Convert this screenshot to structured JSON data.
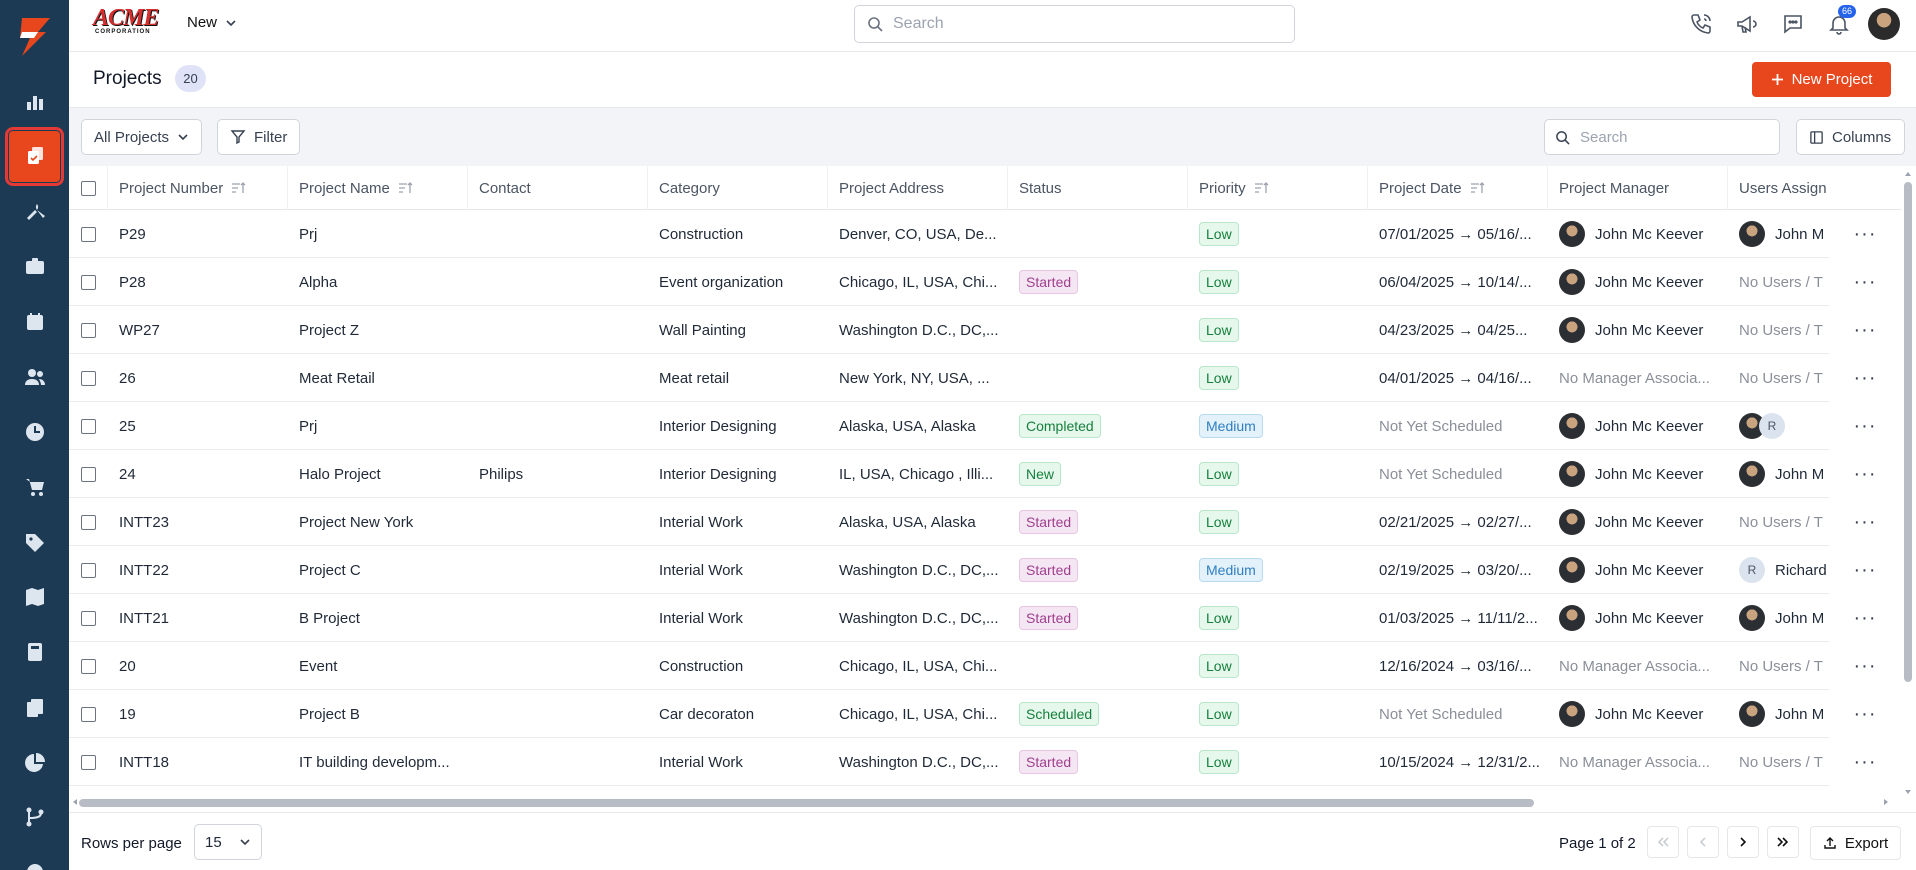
{
  "topbar": {
    "brand_main": "ACME",
    "brand_sub": "CORPORATION",
    "new_label": "New",
    "search_placeholder": "Search",
    "notification_count": "66"
  },
  "header": {
    "title": "Projects",
    "count": "20",
    "new_project_label": "New Project"
  },
  "toolbar": {
    "all_projects_label": "All Projects",
    "filter_label": "Filter",
    "search_placeholder": "Search",
    "columns_label": "Columns"
  },
  "table": {
    "columns": [
      "Project Number",
      "Project Name",
      "Contact",
      "Category",
      "Project Address",
      "Status",
      "Priority",
      "Project Date",
      "Project Manager",
      "Users Assign"
    ],
    "rows": [
      {
        "number": "P29",
        "name": "Prj",
        "contact": "",
        "category": "Construction",
        "address": "Denver, CO, USA, De...",
        "status": "",
        "priority": "Low",
        "date": "07/01/2025 → 05/16/...",
        "manager": "John Mc Keever",
        "users": "John M"
      },
      {
        "number": "P28",
        "name": "Alpha",
        "contact": "",
        "category": "Event organization",
        "address": "Chicago, IL, USA, Chi...",
        "status": "Started",
        "priority": "Low",
        "date": "06/04/2025 → 10/14/...",
        "manager": "John Mc Keever",
        "users": "No Users / T"
      },
      {
        "number": "WP27",
        "name": "Project Z",
        "contact": "",
        "category": "Wall Painting",
        "address": "Washington D.C., DC,...",
        "status": "",
        "priority": "Low",
        "date": "04/23/2025 → 04/25...",
        "manager": "John Mc Keever",
        "users": "No Users / T"
      },
      {
        "number": "26",
        "name": "Meat Retail",
        "contact": "",
        "category": "Meat retail",
        "address": "New York, NY, USA, ...",
        "status": "",
        "priority": "Low",
        "date": "04/01/2025 → 04/16/...",
        "manager": "No Manager Associa...",
        "users": "No Users / T"
      },
      {
        "number": "25",
        "name": "Prj",
        "contact": "",
        "category": "Interior Designing",
        "address": "Alaska, USA, Alaska",
        "status": "Completed",
        "priority": "Medium",
        "date": "Not Yet Scheduled",
        "manager": "John Mc Keever",
        "users": "R"
      },
      {
        "number": "24",
        "name": "Halo Project",
        "contact": "Philips",
        "category": "Interior Designing",
        "address": "IL, USA, Chicago , Illi...",
        "status": "New",
        "priority": "Low",
        "date": "Not Yet Scheduled",
        "manager": "John Mc Keever",
        "users": "John M"
      },
      {
        "number": "INTT23",
        "name": "Project New York",
        "contact": "",
        "category": "Interial Work",
        "address": "Alaska, USA, Alaska",
        "status": "Started",
        "priority": "Low",
        "date": "02/21/2025 → 02/27/...",
        "manager": "John Mc Keever",
        "users": "No Users / T"
      },
      {
        "number": "INTT22",
        "name": "Project C",
        "contact": "",
        "category": "Interial Work",
        "address": "Washington D.C., DC,...",
        "status": "Started",
        "priority": "Medium",
        "date": "02/19/2025 → 03/20/...",
        "manager": "John Mc Keever",
        "users": "Richard"
      },
      {
        "number": "INTT21",
        "name": "B Project",
        "contact": "",
        "category": "Interial Work",
        "address": "Washington D.C., DC,...",
        "status": "Started",
        "priority": "Low",
        "date": "01/03/2025 → 11/11/2...",
        "manager": "John Mc Keever",
        "users": "John M"
      },
      {
        "number": "20",
        "name": "Event",
        "contact": "",
        "category": "Construction",
        "address": "Chicago, IL, USA, Chi...",
        "status": "",
        "priority": "Low",
        "date": "12/16/2024 → 03/16/...",
        "manager": "No Manager Associa...",
        "users": "No Users / T"
      },
      {
        "number": "19",
        "name": "Project B",
        "contact": "",
        "category": "Car decoraton",
        "address": "Chicago, IL, USA, Chi...",
        "status": "Scheduled",
        "priority": "Low",
        "date": "Not Yet Scheduled",
        "manager": "John Mc Keever",
        "users": "John M"
      },
      {
        "number": "INTT18",
        "name": "IT building developm...",
        "contact": "",
        "category": "Interial Work",
        "address": "Washington D.C., DC,...",
        "status": "Started",
        "priority": "Low",
        "date": "10/15/2024 → 12/31/2...",
        "manager": "No Manager Associa...",
        "users": "No Users / T"
      }
    ]
  },
  "footer": {
    "rows_per_page_label": "Rows per page",
    "rows_per_page_value": "15",
    "page_info": "Page 1 of 2",
    "export_label": "Export"
  },
  "colors": {
    "sidebar_bg": "#1d3a54",
    "accent": "#e8471e"
  }
}
